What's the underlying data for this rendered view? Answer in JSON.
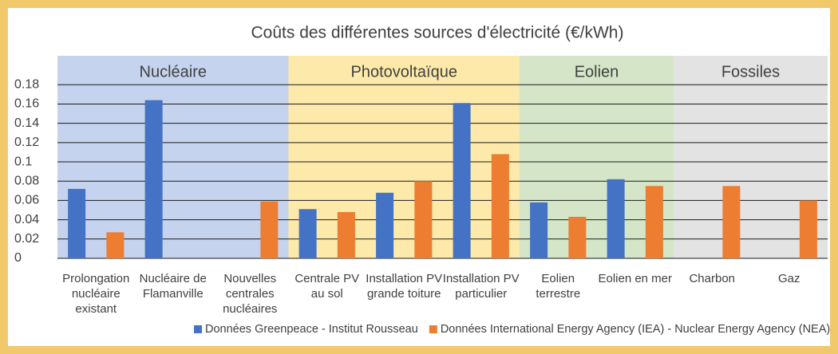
{
  "chart_data": {
    "type": "bar",
    "title": "Coûts des différentes sources d'électricité (€/kWh)",
    "categories": [
      "Prolongation nucléaire existant",
      "Nucléaire de Flamanville",
      "Nouvelles centrales nucléaires",
      "Centrale PV au sol",
      "Installation PV grande toiture",
      "Installation PV particulier",
      "Eolien terrestre",
      "Eolien en mer",
      "Charbon",
      "Gaz"
    ],
    "groups": [
      {
        "name": "Nucléaire",
        "span": 3,
        "color": "#c5d3ee"
      },
      {
        "name": "Photovoltaïque",
        "span": 3,
        "color": "#fde9a9"
      },
      {
        "name": "Eolien",
        "span": 2,
        "color": "#d4e6c7"
      },
      {
        "name": "Fossiles",
        "span": 2,
        "color": "#e3e3e3"
      }
    ],
    "series": [
      {
        "name": "Données Greenpeace - Institut Rousseau",
        "color": "#4472c4",
        "values": [
          0.072,
          0.164,
          null,
          0.051,
          0.068,
          0.161,
          0.058,
          0.082,
          null,
          null
        ]
      },
      {
        "name": "Données International Energy Agency (IEA) - Nuclear Energy Agency (NEA)",
        "color": "#ed7d31",
        "values": [
          0.027,
          null,
          0.059,
          0.048,
          0.08,
          0.108,
          0.043,
          0.075,
          0.075,
          0.06
        ]
      }
    ],
    "ylim": [
      0,
      0.21
    ],
    "yticks": [
      0,
      0.02,
      0.04,
      0.06,
      0.08,
      0.1,
      0.12,
      0.14,
      0.16,
      0.18
    ],
    "grid": true,
    "legend": "bottom"
  }
}
